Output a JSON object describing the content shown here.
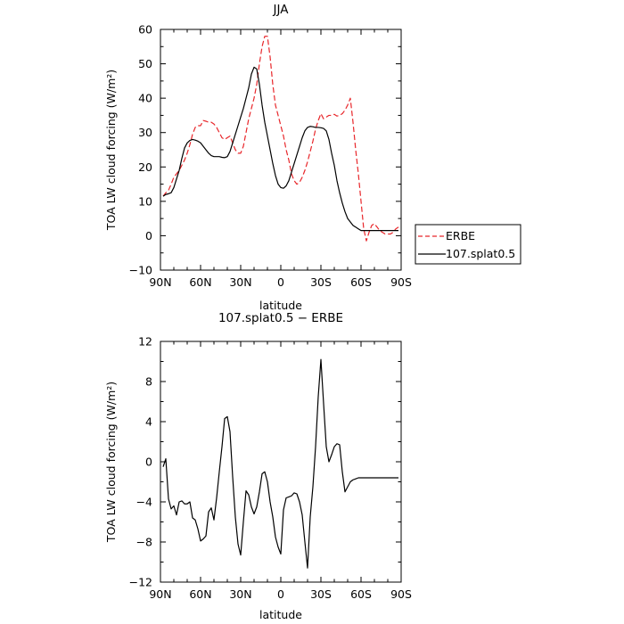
{
  "chart_data": [
    {
      "type": "line",
      "title": "JJA",
      "xlabel": "latitude",
      "ylabel": "TOA LW cloud forcing (W/m²)",
      "xlim": [
        -90,
        90
      ],
      "ylim": [
        -10,
        60
      ],
      "xticks": [
        -90,
        -60,
        -30,
        0,
        30,
        60,
        90
      ],
      "xtick_labels": [
        "90N",
        "60N",
        "30N",
        "0",
        "30S",
        "60S",
        "90S"
      ],
      "yticks": [
        -10,
        0,
        10,
        20,
        30,
        40,
        50,
        60
      ],
      "ytick_labels": [
        "−10",
        "0",
        "10",
        "20",
        "30",
        "40",
        "50",
        "60"
      ],
      "grid": false,
      "legend_position": "right",
      "series": [
        {
          "name": "ERBE",
          "color": "#e8262a",
          "dash": "dashed",
          "x": [
            -88,
            -86,
            -84,
            -82,
            -80,
            -78,
            -76,
            -74,
            -72,
            -70,
            -68,
            -66,
            -64,
            -62,
            -60,
            -58,
            -56,
            -54,
            -52,
            -50,
            -48,
            -46,
            -44,
            -42,
            -40,
            -38,
            -36,
            -34,
            -32,
            -30,
            -28,
            -26,
            -24,
            -22,
            -20,
            -18,
            -16,
            -14,
            -12,
            -10,
            -8,
            -6,
            -4,
            -2,
            0,
            2,
            4,
            6,
            8,
            10,
            12,
            14,
            16,
            18,
            20,
            22,
            24,
            26,
            28,
            30,
            32,
            34,
            36,
            38,
            40,
            42,
            44,
            46,
            48,
            50,
            52,
            54,
            56,
            58,
            60,
            62,
            64,
            66,
            68,
            70,
            72,
            74,
            76,
            78,
            80,
            82,
            84,
            86,
            88
          ],
          "values": [
            11.5,
            12.5,
            13.2,
            15.0,
            17.0,
            18.0,
            19.0,
            20.5,
            22.0,
            24.0,
            26.5,
            29.5,
            31.5,
            32.0,
            32.0,
            33.5,
            33.3,
            33.0,
            33.0,
            32.5,
            31.5,
            30.0,
            28.5,
            28.0,
            28.5,
            29.0,
            27.0,
            25.0,
            24.0,
            24.0,
            26.0,
            30.0,
            34.0,
            37.0,
            40.0,
            44.0,
            50.0,
            55.0,
            58.0,
            58.0,
            52.0,
            44.0,
            38.0,
            35.0,
            32.0,
            29.0,
            25.0,
            22.0,
            18.0,
            16.0,
            15.0,
            15.5,
            17.0,
            19.0,
            21.5,
            24.5,
            27.5,
            31.0,
            33.5,
            35.5,
            34.0,
            34.5,
            35.0,
            35.0,
            35.3,
            34.8,
            35.0,
            35.5,
            36.5,
            38.0,
            40.0,
            33.0,
            25.0,
            18.0,
            10.0,
            2.0,
            -1.5,
            1.0,
            3.0,
            3.5,
            2.5,
            1.5,
            1.0,
            0.5,
            0.5,
            0.5,
            1.0,
            2.0,
            2.5
          ]
        },
        {
          "name": "107.splat0.5",
          "color": "#000000",
          "dash": "solid",
          "x": [
            -88,
            -86,
            -84,
            -82,
            -80,
            -78,
            -76,
            -74,
            -72,
            -70,
            -68,
            -66,
            -64,
            -62,
            -60,
            -58,
            -56,
            -54,
            -52,
            -50,
            -48,
            -46,
            -44,
            -42,
            -40,
            -38,
            -36,
            -34,
            -32,
            -30,
            -28,
            -26,
            -24,
            -22,
            -20,
            -18,
            -16,
            -14,
            -12,
            -10,
            -8,
            -6,
            -4,
            -2,
            0,
            2,
            4,
            6,
            8,
            10,
            12,
            14,
            16,
            18,
            20,
            22,
            24,
            26,
            28,
            30,
            32,
            34,
            36,
            38,
            40,
            42,
            44,
            46,
            48,
            50,
            52,
            54,
            56,
            58,
            60,
            62,
            64,
            66,
            68,
            70,
            72,
            74,
            76,
            78,
            80,
            82,
            84,
            86,
            88
          ],
          "values": [
            11.5,
            12.0,
            12.2,
            12.5,
            14.0,
            16.5,
            19.0,
            22.5,
            25.5,
            27.0,
            27.7,
            28.0,
            27.8,
            27.5,
            27.0,
            26.0,
            25.0,
            24.0,
            23.3,
            23.0,
            23.0,
            23.0,
            22.8,
            22.7,
            23.0,
            24.5,
            27.0,
            29.5,
            32.0,
            34.5,
            37.0,
            40.0,
            43.0,
            47.0,
            49.0,
            48.5,
            44.0,
            38.0,
            33.0,
            29.0,
            25.0,
            21.0,
            17.5,
            15.0,
            14.0,
            13.8,
            14.5,
            16.0,
            18.5,
            21.0,
            23.5,
            26.0,
            28.5,
            30.5,
            31.5,
            31.8,
            31.7,
            31.5,
            31.5,
            31.4,
            31.2,
            30.5,
            28.0,
            24.0,
            20.5,
            16.0,
            12.5,
            9.5,
            7.0,
            5.0,
            4.0,
            3.0,
            2.5,
            2.0,
            1.5,
            1.5,
            1.5,
            1.5,
            1.5,
            1.5,
            1.5,
            1.5,
            1.5,
            1.5,
            1.5,
            1.5,
            1.5,
            1.5,
            1.5
          ]
        }
      ]
    },
    {
      "type": "line",
      "title": "107.splat0.5 − ERBE",
      "xlabel": "latitude",
      "ylabel": "TOA LW cloud forcing (W/m²)",
      "xlim": [
        -90,
        90
      ],
      "ylim": [
        -12,
        12
      ],
      "xticks": [
        -90,
        -60,
        -30,
        0,
        30,
        60,
        90
      ],
      "xtick_labels": [
        "90N",
        "60N",
        "30N",
        "0",
        "30S",
        "60S",
        "90S"
      ],
      "yticks": [
        -12,
        -8,
        -4,
        0,
        4,
        8,
        12
      ],
      "ytick_labels": [
        "−12",
        "−8",
        "−4",
        "0",
        "4",
        "8",
        "12"
      ],
      "grid": false,
      "series": [
        {
          "color": "#000000",
          "dash": "solid",
          "x": [
            -88,
            -86,
            -84,
            -82,
            -80,
            -78,
            -76,
            -74,
            -72,
            -70,
            -68,
            -66,
            -64,
            -62,
            -60,
            -58,
            -56,
            -54,
            -52,
            -50,
            -48,
            -46,
            -44,
            -42,
            -40,
            -38,
            -36,
            -34,
            -32,
            -30,
            -28,
            -26,
            -24,
            -22,
            -20,
            -18,
            -16,
            -14,
            -12,
            -10,
            -8,
            -6,
            -4,
            -2,
            0,
            2,
            4,
            6,
            8,
            10,
            12,
            14,
            16,
            18,
            20,
            22,
            24,
            26,
            28,
            30,
            32,
            34,
            36,
            38,
            40,
            42,
            44,
            46,
            48,
            50,
            52,
            54,
            56,
            58,
            60,
            62,
            64,
            66,
            68,
            70,
            72,
            74,
            76,
            78,
            80,
            82,
            84,
            86,
            88
          ],
          "values": [
            -0.5,
            0.3,
            -3.7,
            -4.7,
            -4.4,
            -5.3,
            -4.0,
            -3.9,
            -4.2,
            -4.2,
            -4.0,
            -5.6,
            -5.8,
            -6.7,
            -7.9,
            -7.7,
            -7.4,
            -5.0,
            -4.6,
            -5.8,
            -3.6,
            -1.0,
            1.5,
            4.3,
            4.5,
            3.0,
            -1.5,
            -5.5,
            -8.2,
            -9.3,
            -6.0,
            -2.9,
            -3.3,
            -4.5,
            -5.2,
            -4.5,
            -3.0,
            -1.2,
            -1.0,
            -2.0,
            -4.0,
            -5.5,
            -7.5,
            -8.5,
            -9.2,
            -4.8,
            -3.6,
            -3.5,
            -3.4,
            -3.1,
            -3.2,
            -4.0,
            -5.3,
            -8.0,
            -10.6,
            -5.5,
            -2.5,
            1.5,
            6.5,
            10.2,
            5.8,
            1.5,
            0.0,
            0.7,
            1.5,
            1.8,
            1.7,
            -1.0,
            -3.0,
            -2.5,
            -2.0,
            -1.8,
            -1.7,
            -1.6,
            -1.6,
            -1.6,
            -1.6,
            -1.6,
            -1.6,
            -1.6,
            -1.6,
            -1.6,
            -1.6,
            -1.6,
            -1.6,
            -1.6,
            -1.6,
            -1.6,
            -1.6
          ]
        }
      ]
    }
  ]
}
